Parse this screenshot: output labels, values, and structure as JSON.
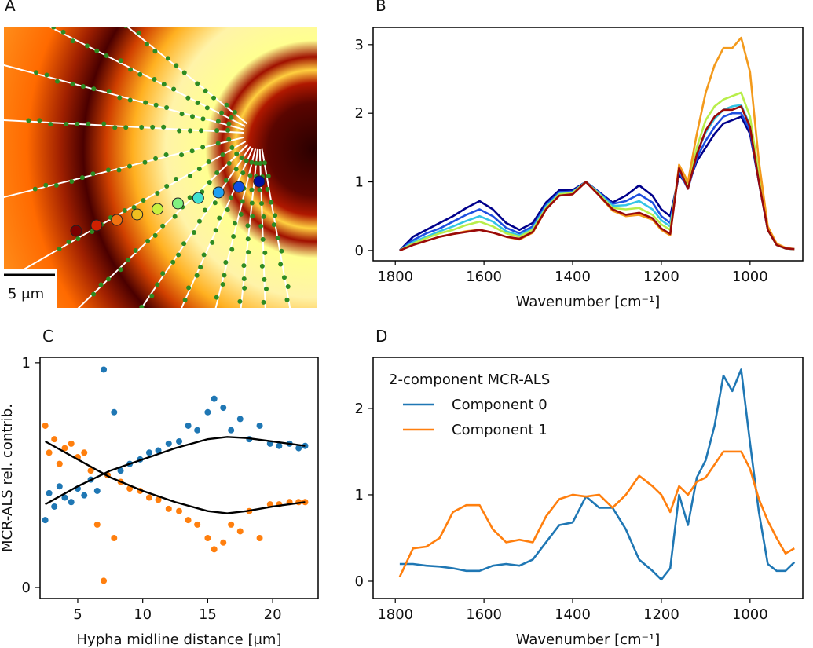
{
  "chart_data": [
    {
      "type": "image",
      "label": "A",
      "scale_bar": "5 μm"
    },
    {
      "type": "line",
      "label": "B",
      "xlabel": "Wavenumber [cm⁻¹]",
      "x": [
        1790,
        1760,
        1730,
        1700,
        1670,
        1640,
        1610,
        1580,
        1550,
        1520,
        1490,
        1460,
        1430,
        1400,
        1370,
        1340,
        1310,
        1280,
        1250,
        1220,
        1200,
        1180,
        1160,
        1140,
        1120,
        1100,
        1080,
        1060,
        1040,
        1020,
        1000,
        980,
        960,
        940,
        920,
        900
      ],
      "series": [
        {
          "color": "#00008b",
          "values": [
            0.0,
            0.2,
            0.3,
            0.4,
            0.5,
            0.62,
            0.72,
            0.6,
            0.4,
            0.3,
            0.4,
            0.7,
            0.88,
            0.88,
            1.0,
            0.85,
            0.7,
            0.8,
            0.95,
            0.8,
            0.6,
            0.5,
            1.1,
            0.95,
            1.3,
            1.5,
            1.7,
            1.85,
            1.9,
            1.95,
            1.7,
            1.0,
            0.3,
            0.08,
            0.03,
            0.02
          ]
        },
        {
          "color": "#1f4fe0",
          "values": [
            0.0,
            0.15,
            0.25,
            0.32,
            0.42,
            0.52,
            0.6,
            0.5,
            0.33,
            0.25,
            0.35,
            0.66,
            0.85,
            0.86,
            1.0,
            0.84,
            0.68,
            0.72,
            0.82,
            0.7,
            0.5,
            0.4,
            1.15,
            0.9,
            1.35,
            1.6,
            1.8,
            1.95,
            2.0,
            2.0,
            1.75,
            1.0,
            0.3,
            0.08,
            0.03,
            0.02
          ]
        },
        {
          "color": "#33c4e6",
          "values": [
            0.0,
            0.12,
            0.2,
            0.28,
            0.35,
            0.43,
            0.5,
            0.42,
            0.28,
            0.22,
            0.32,
            0.64,
            0.83,
            0.85,
            1.0,
            0.83,
            0.65,
            0.66,
            0.72,
            0.6,
            0.44,
            0.35,
            1.18,
            0.92,
            1.42,
            1.72,
            1.92,
            2.05,
            2.1,
            2.12,
            1.82,
            1.05,
            0.3,
            0.08,
            0.03,
            0.02
          ]
        },
        {
          "color": "#b8ee4a",
          "values": [
            0.0,
            0.1,
            0.18,
            0.25,
            0.3,
            0.37,
            0.42,
            0.35,
            0.25,
            0.2,
            0.3,
            0.62,
            0.82,
            0.84,
            1.0,
            0.82,
            0.62,
            0.6,
            0.62,
            0.52,
            0.38,
            0.3,
            1.2,
            0.95,
            1.5,
            1.9,
            2.1,
            2.2,
            2.25,
            2.3,
            1.95,
            1.1,
            0.3,
            0.08,
            0.03,
            0.02
          ]
        },
        {
          "color": "#f39a1c",
          "values": [
            0.0,
            0.08,
            0.14,
            0.2,
            0.24,
            0.28,
            0.3,
            0.26,
            0.2,
            0.16,
            0.26,
            0.6,
            0.8,
            0.82,
            1.0,
            0.8,
            0.58,
            0.5,
            0.52,
            0.45,
            0.3,
            0.22,
            1.25,
            1.0,
            1.7,
            2.3,
            2.7,
            2.95,
            2.95,
            3.1,
            2.6,
            1.3,
            0.35,
            0.1,
            0.04,
            0.02
          ]
        },
        {
          "color": "#9a0a0a",
          "values": [
            0.0,
            0.08,
            0.14,
            0.2,
            0.24,
            0.27,
            0.3,
            0.26,
            0.2,
            0.17,
            0.27,
            0.6,
            0.8,
            0.82,
            1.0,
            0.8,
            0.6,
            0.52,
            0.55,
            0.47,
            0.32,
            0.24,
            1.2,
            0.9,
            1.4,
            1.75,
            1.95,
            2.05,
            2.05,
            2.1,
            1.8,
            1.0,
            0.3,
            0.08,
            0.03,
            0.02
          ]
        }
      ],
      "xlim": [
        1850,
        881
      ],
      "ylim": [
        -0.15,
        3.25
      ],
      "xticks": [
        1800,
        1600,
        1400,
        1200,
        1000
      ],
      "yticks": [
        0,
        1,
        2,
        3
      ]
    },
    {
      "type": "scatter",
      "label": "C",
      "xlabel": "Hypha midline distance [μm]",
      "ylabel": "MCR-ALS rel. contrib.",
      "series": [
        {
          "color": "#1f77b4",
          "style": "scatter",
          "x": [
            2.5,
            2.8,
            3.2,
            3.6,
            4.0,
            4.5,
            5.0,
            5.5,
            6.0,
            6.5,
            7.0,
            7.3,
            7.8,
            8.3,
            9.0,
            9.8,
            10.5,
            11.2,
            12.0,
            12.8,
            13.5,
            14.2,
            15.0,
            15.5,
            16.2,
            16.8,
            17.5,
            18.2,
            19.0,
            19.8,
            20.5,
            21.3,
            22.0,
            22.5
          ],
          "values": [
            0.3,
            0.42,
            0.36,
            0.45,
            0.4,
            0.38,
            0.44,
            0.41,
            0.48,
            0.43,
            0.97,
            0.5,
            0.78,
            0.52,
            0.55,
            0.57,
            0.6,
            0.61,
            0.64,
            0.65,
            0.72,
            0.7,
            0.78,
            0.84,
            0.8,
            0.7,
            0.75,
            0.66,
            0.72,
            0.64,
            0.63,
            0.64,
            0.62,
            0.63
          ]
        },
        {
          "color": "#ff7f0e",
          "style": "scatter",
          "x": [
            2.5,
            2.8,
            3.2,
            3.6,
            4.0,
            4.5,
            5.0,
            5.5,
            6.0,
            6.5,
            7.0,
            7.3,
            7.8,
            8.3,
            9.0,
            9.8,
            10.5,
            11.2,
            12.0,
            12.8,
            13.5,
            14.2,
            15.0,
            15.5,
            16.2,
            16.8,
            17.5,
            18.2,
            19.0,
            19.8,
            20.5,
            21.3,
            22.0,
            22.5
          ],
          "values": [
            0.72,
            0.6,
            0.66,
            0.55,
            0.62,
            0.64,
            0.58,
            0.6,
            0.52,
            0.28,
            0.03,
            0.5,
            0.22,
            0.47,
            0.44,
            0.43,
            0.4,
            0.39,
            0.35,
            0.34,
            0.3,
            0.28,
            0.22,
            0.17,
            0.2,
            0.28,
            0.25,
            0.34,
            0.22,
            0.37,
            0.37,
            0.38,
            0.38,
            0.38
          ]
        },
        {
          "color": "#000000",
          "style": "line",
          "x": [
            2.5,
            5,
            7.5,
            10,
            12.5,
            15,
            16.5,
            18,
            20,
            22.5
          ],
          "values": [
            0.37,
            0.45,
            0.52,
            0.57,
            0.62,
            0.66,
            0.67,
            0.665,
            0.65,
            0.63
          ]
        },
        {
          "color": "#000000",
          "style": "line",
          "x": [
            2.5,
            5,
            7.5,
            10,
            12.5,
            15,
            16.5,
            18,
            20,
            22.5
          ],
          "values": [
            0.65,
            0.57,
            0.49,
            0.43,
            0.38,
            0.34,
            0.33,
            0.34,
            0.36,
            0.38
          ]
        }
      ],
      "xlim": [
        2.1,
        23.5
      ],
      "ylim": [
        -0.049,
        1.024
      ],
      "xticks": [
        5,
        10,
        15,
        20
      ],
      "yticks": [
        0,
        1
      ]
    },
    {
      "type": "line",
      "label": "D",
      "xlabel": "Wavenumber [cm⁻¹]",
      "legend_title": "2-component MCR-ALS",
      "legend": "upper left",
      "x": [
        1790,
        1760,
        1730,
        1700,
        1670,
        1640,
        1610,
        1580,
        1550,
        1520,
        1490,
        1460,
        1430,
        1400,
        1370,
        1340,
        1310,
        1280,
        1250,
        1220,
        1200,
        1180,
        1160,
        1140,
        1120,
        1100,
        1080,
        1060,
        1040,
        1020,
        1000,
        980,
        960,
        940,
        920,
        900
      ],
      "series": [
        {
          "name": "Component 0",
          "color": "#1f77b4",
          "values": [
            0.2,
            0.2,
            0.18,
            0.17,
            0.15,
            0.12,
            0.12,
            0.18,
            0.2,
            0.18,
            0.25,
            0.45,
            0.65,
            0.68,
            0.98,
            0.85,
            0.85,
            0.6,
            0.25,
            0.12,
            0.02,
            0.15,
            1.0,
            0.65,
            1.2,
            1.4,
            1.8,
            2.38,
            2.2,
            2.45,
            1.6,
            0.8,
            0.2,
            0.12,
            0.12,
            0.22
          ]
        },
        {
          "name": "Component 1",
          "color": "#ff7f0e",
          "values": [
            0.05,
            0.38,
            0.4,
            0.5,
            0.8,
            0.88,
            0.88,
            0.6,
            0.45,
            0.48,
            0.45,
            0.75,
            0.95,
            1.0,
            0.98,
            1.0,
            0.85,
            1.0,
            1.22,
            1.1,
            1.0,
            0.8,
            1.1,
            1.0,
            1.15,
            1.2,
            1.35,
            1.5,
            1.5,
            1.5,
            1.3,
            0.95,
            0.7,
            0.5,
            0.32,
            0.38
          ]
        }
      ],
      "xlim": [
        1850,
        881
      ],
      "ylim": [
        -0.2,
        2.59
      ],
      "xticks": [
        1800,
        1600,
        1400,
        1200,
        1000
      ],
      "yticks": [
        0,
        1,
        2
      ]
    }
  ]
}
